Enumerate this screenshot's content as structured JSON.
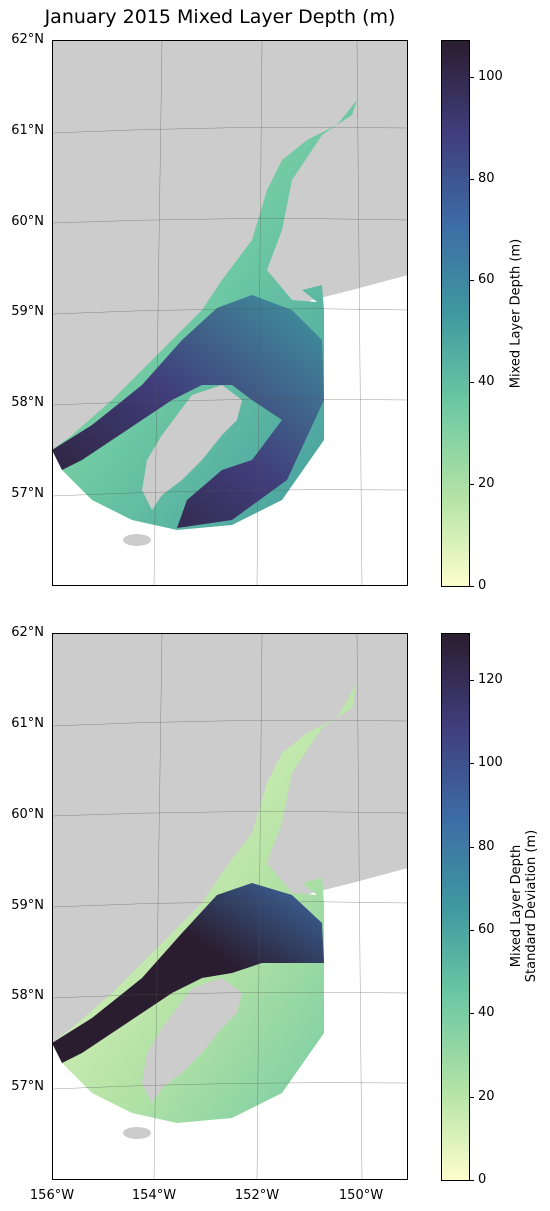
{
  "title": "January 2015 Mixed Layer Depth (m)",
  "lat_labels": [
    "62°N",
    "61°N",
    "60°N",
    "59°N",
    "58°N",
    "57°N"
  ],
  "lon_labels": [
    "156°W",
    "154°W",
    "152°W",
    "150°W"
  ],
  "colormap": {
    "name": "deep",
    "stops": [
      "#fdfecc",
      "#b2e2a5",
      "#6dc8a3",
      "#3f98a0",
      "#3d6ba4",
      "#403d7b",
      "#2a1d2f"
    ]
  },
  "land_color": "#cccccc",
  "panels": [
    {
      "colorbar_label": "Mixed Layer Depth (m)",
      "colorbar_ticks": [
        "0",
        "20",
        "40",
        "60",
        "80",
        "100"
      ],
      "colorbar_max": 107
    },
    {
      "colorbar_label": "Mixed Layer Depth\nStandard Deviation (m)",
      "colorbar_ticks": [
        "0",
        "20",
        "40",
        "60",
        "80",
        "100",
        "120"
      ],
      "colorbar_max": 131
    }
  ]
}
